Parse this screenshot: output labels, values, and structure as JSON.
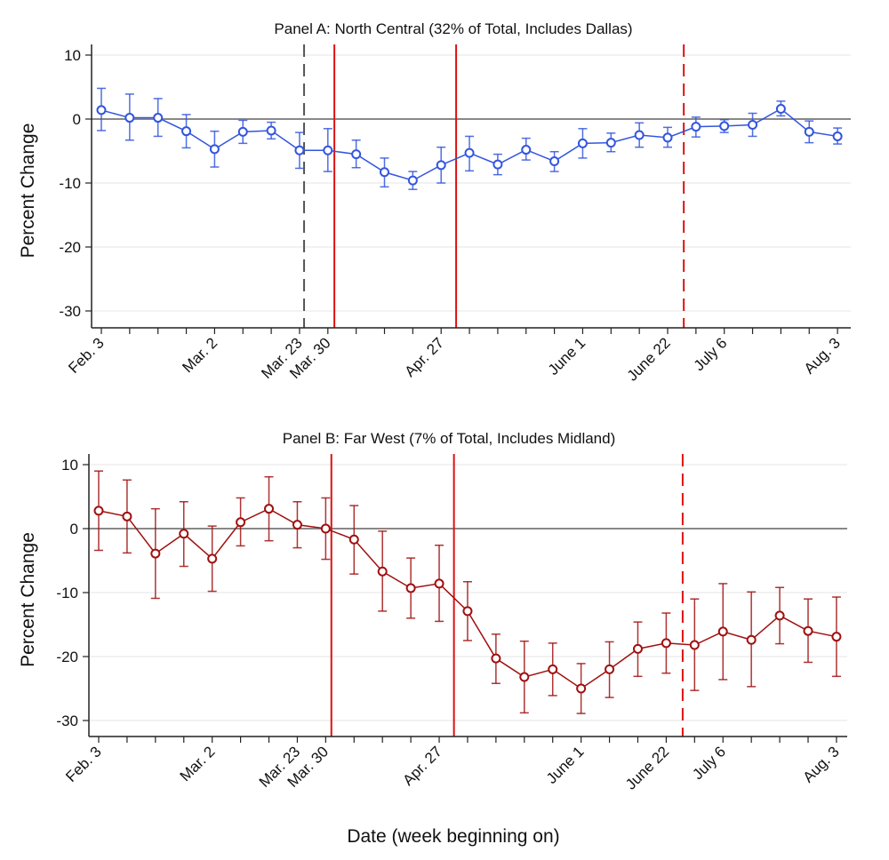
{
  "chart_data": [
    {
      "type": "line",
      "title": "Panel A: North Central (32% of Total, Includes Dallas)",
      "ylabel": "Percent Change",
      "xlabel": "",
      "ylim": [
        -32,
        10
      ],
      "yticks": [
        10,
        0,
        -10,
        -20,
        -30
      ],
      "grid": true,
      "color": "#3355dd",
      "x": [
        "Feb. 3",
        "Feb. 10",
        "Feb. 17",
        "Feb. 24",
        "Mar. 2",
        "Mar. 9",
        "Mar. 16",
        "Mar. 23",
        "Mar. 30",
        "Apr. 6",
        "Apr. 13",
        "Apr. 20",
        "Apr. 27",
        "May 4",
        "May 11",
        "May 18",
        "May 25",
        "June 1",
        "June 8",
        "June 15",
        "June 22",
        "June 29",
        "July 6",
        "July 13",
        "July 20",
        "July 27",
        "Aug. 3"
      ],
      "xtick_labels": [
        {
          "index": 0,
          "label": "Feb. 3"
        },
        {
          "index": 4,
          "label": "Mar. 2"
        },
        {
          "index": 7,
          "label": "Mar. 23"
        },
        {
          "index": 8,
          "label": "Mar. 30"
        },
        {
          "index": 12,
          "label": "Apr. 27"
        },
        {
          "index": 17,
          "label": "June 1"
        },
        {
          "index": 20,
          "label": "June 22"
        },
        {
          "index": 22,
          "label": "July 6"
        },
        {
          "index": 26,
          "label": "Aug. 3"
        }
      ],
      "series": [
        {
          "name": "North Central",
          "values": [
            1.4,
            0.2,
            0.2,
            -1.9,
            -4.7,
            -2.0,
            -1.8,
            -4.9,
            -4.9,
            -5.5,
            -8.3,
            -9.6,
            -7.2,
            -5.3,
            -7.1,
            -4.8,
            -6.6,
            -3.8,
            -3.7,
            -2.5,
            -2.9,
            -1.2,
            -1.1,
            -0.9,
            1.6,
            -2.0,
            -2.7
          ],
          "ci_upper": [
            4.8,
            3.9,
            3.2,
            0.7,
            -1.9,
            -0.2,
            -0.5,
            -2.1,
            -1.5,
            -3.3,
            -6.1,
            -8.2,
            -4.4,
            -2.7,
            -5.5,
            -3.0,
            -5.1,
            -1.5,
            -2.2,
            -0.6,
            -1.3,
            0.3,
            -0.1,
            0.9,
            2.8,
            -0.3,
            -1.4
          ],
          "ci_lower": [
            -1.8,
            -3.3,
            -2.7,
            -4.5,
            -7.5,
            -3.8,
            -3.1,
            -7.7,
            -8.2,
            -7.6,
            -10.6,
            -11.0,
            -10.0,
            -8.1,
            -8.7,
            -6.4,
            -8.2,
            -6.1,
            -5.1,
            -4.4,
            -4.4,
            -2.8,
            -2.1,
            -2.7,
            0.5,
            -3.7,
            -3.9
          ]
        }
      ],
      "vlines": [
        {
          "x_week": 7.16,
          "style": "dashed",
          "color": "#555555"
        },
        {
          "x_week": 8.23,
          "style": "solid",
          "color": "#dd1111"
        },
        {
          "x_week": 12.53,
          "style": "solid",
          "color": "#dd1111"
        },
        {
          "x_week": 20.57,
          "style": "dashed",
          "color": "#dd1111"
        }
      ]
    },
    {
      "type": "line",
      "title": "Panel B: Far West  (7% of Total, Includes Midland)",
      "ylabel": "Percent Change",
      "xlabel": "Date (week beginning on)",
      "ylim": [
        -32,
        10
      ],
      "yticks": [
        10,
        0,
        -10,
        -20,
        -30
      ],
      "grid": true,
      "color": "#a01010",
      "x": [
        "Feb. 3",
        "Feb. 10",
        "Feb. 17",
        "Feb. 24",
        "Mar. 2",
        "Mar. 9",
        "Mar. 16",
        "Mar. 23",
        "Mar. 30",
        "Apr. 6",
        "Apr. 13",
        "Apr. 20",
        "Apr. 27",
        "May 4",
        "May 11",
        "May 18",
        "May 25",
        "June 1",
        "June 8",
        "June 15",
        "June 22",
        "June 29",
        "July 6",
        "July 13",
        "July 20",
        "July 27",
        "Aug. 3"
      ],
      "xtick_labels": [
        {
          "index": 0,
          "label": "Feb. 3"
        },
        {
          "index": 4,
          "label": "Mar. 2"
        },
        {
          "index": 7,
          "label": "Mar. 23"
        },
        {
          "index": 8,
          "label": "Mar. 30"
        },
        {
          "index": 12,
          "label": "Apr. 27"
        },
        {
          "index": 17,
          "label": "June 1"
        },
        {
          "index": 20,
          "label": "June 22"
        },
        {
          "index": 22,
          "label": "July 6"
        },
        {
          "index": 26,
          "label": "Aug. 3"
        }
      ],
      "series": [
        {
          "name": "Far West",
          "values": [
            2.8,
            1.9,
            -3.9,
            -0.8,
            -4.7,
            1.0,
            3.1,
            0.6,
            0.0,
            -1.7,
            -6.7,
            -9.3,
            -8.6,
            -12.9,
            -20.3,
            -23.2,
            -22.0,
            -25.0,
            -22.0,
            -18.8,
            -17.9,
            -18.2,
            -16.1,
            -17.4,
            -13.6,
            -16.0,
            -16.9
          ],
          "ci_upper": [
            9.0,
            7.6,
            3.1,
            4.2,
            0.4,
            4.8,
            8.1,
            4.2,
            4.8,
            3.6,
            -0.4,
            -4.6,
            -2.6,
            -8.3,
            -16.5,
            -17.6,
            -17.9,
            -21.1,
            -17.7,
            -14.6,
            -13.2,
            -11.0,
            -8.6,
            -9.9,
            -9.2,
            -11.0,
            -10.7
          ],
          "ci_lower": [
            -3.4,
            -3.8,
            -10.9,
            -5.9,
            -9.8,
            -2.7,
            -1.9,
            -3.0,
            -4.8,
            -7.1,
            -12.9,
            -14.0,
            -14.5,
            -17.5,
            -24.2,
            -28.8,
            -26.1,
            -28.9,
            -26.4,
            -23.1,
            -22.6,
            -25.3,
            -23.6,
            -24.7,
            -18.0,
            -20.9,
            -23.1
          ]
        }
      ],
      "vlines": [
        {
          "x_week": 8.2,
          "style": "solid",
          "color": "#dd1111"
        },
        {
          "x_week": 12.52,
          "style": "solid",
          "color": "#dd1111"
        },
        {
          "x_week": 20.58,
          "style": "dashed",
          "color": "#dd1111"
        }
      ]
    }
  ]
}
